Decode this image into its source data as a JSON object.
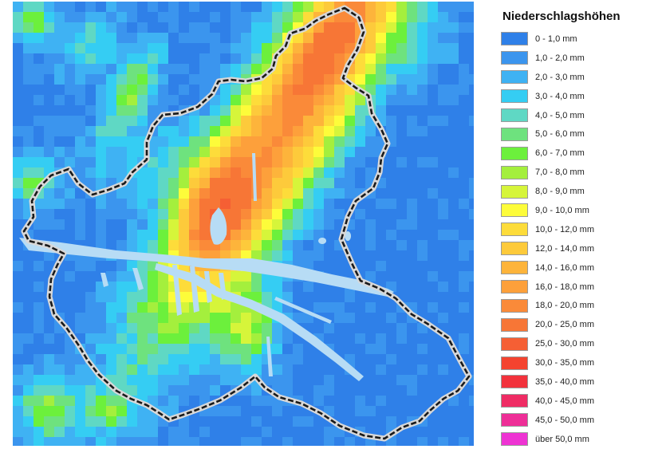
{
  "legend": {
    "title": "Niederschlagshöhen",
    "items": [
      {
        "label": "0 - 1,0 mm",
        "color": "#2f80e8"
      },
      {
        "label": "1,0 - 2,0 mm",
        "color": "#3b95ee"
      },
      {
        "label": "2,0 - 3,0 mm",
        "color": "#3fb2f3"
      },
      {
        "label": "3,0 - 4,0 mm",
        "color": "#35cdf3"
      },
      {
        "label": "4,0 - 5,0 mm",
        "color": "#5fd8c4"
      },
      {
        "label": "5,0 - 6,0 mm",
        "color": "#6ee27e"
      },
      {
        "label": "6,0 - 7,0 mm",
        "color": "#6cf03c"
      },
      {
        "label": "7,0 - 8,0 mm",
        "color": "#a4ef3d"
      },
      {
        "label": "8,0 - 9,0 mm",
        "color": "#d6f53a"
      },
      {
        "label": "9,0 - 10,0 mm",
        "color": "#fdfc3a"
      },
      {
        "label": "10,0 - 12,0 mm",
        "color": "#fddc3a"
      },
      {
        "label": "12,0 - 14,0 mm",
        "color": "#fdca3b"
      },
      {
        "label": "14,0 - 16,0 mm",
        "color": "#fdb43b"
      },
      {
        "label": "16,0 - 18,0 mm",
        "color": "#fda03b"
      },
      {
        "label": "18,0 - 20,0 mm",
        "color": "#fa8a39"
      },
      {
        "label": "20,0 - 25,0 mm",
        "color": "#f77636"
      },
      {
        "label": "25,0 - 30,0 mm",
        "color": "#f55f34"
      },
      {
        "label": "30,0 - 35,0 mm",
        "color": "#f4432f"
      },
      {
        "label": "35,0 - 40,0 mm",
        "color": "#f2323c"
      },
      {
        "label": "40,0 - 45,0 mm",
        "color": "#ef2c64"
      },
      {
        "label": "45,0 - 50,0 mm",
        "color": "#ee2e97"
      },
      {
        "label": "über 50,0 mm",
        "color": "#ee33d3"
      }
    ]
  },
  "map": {
    "water_color": "#b7dcf5",
    "boundary_color": "#1a1a1a",
    "boundary_halo_color": "#d8d8d8"
  }
}
